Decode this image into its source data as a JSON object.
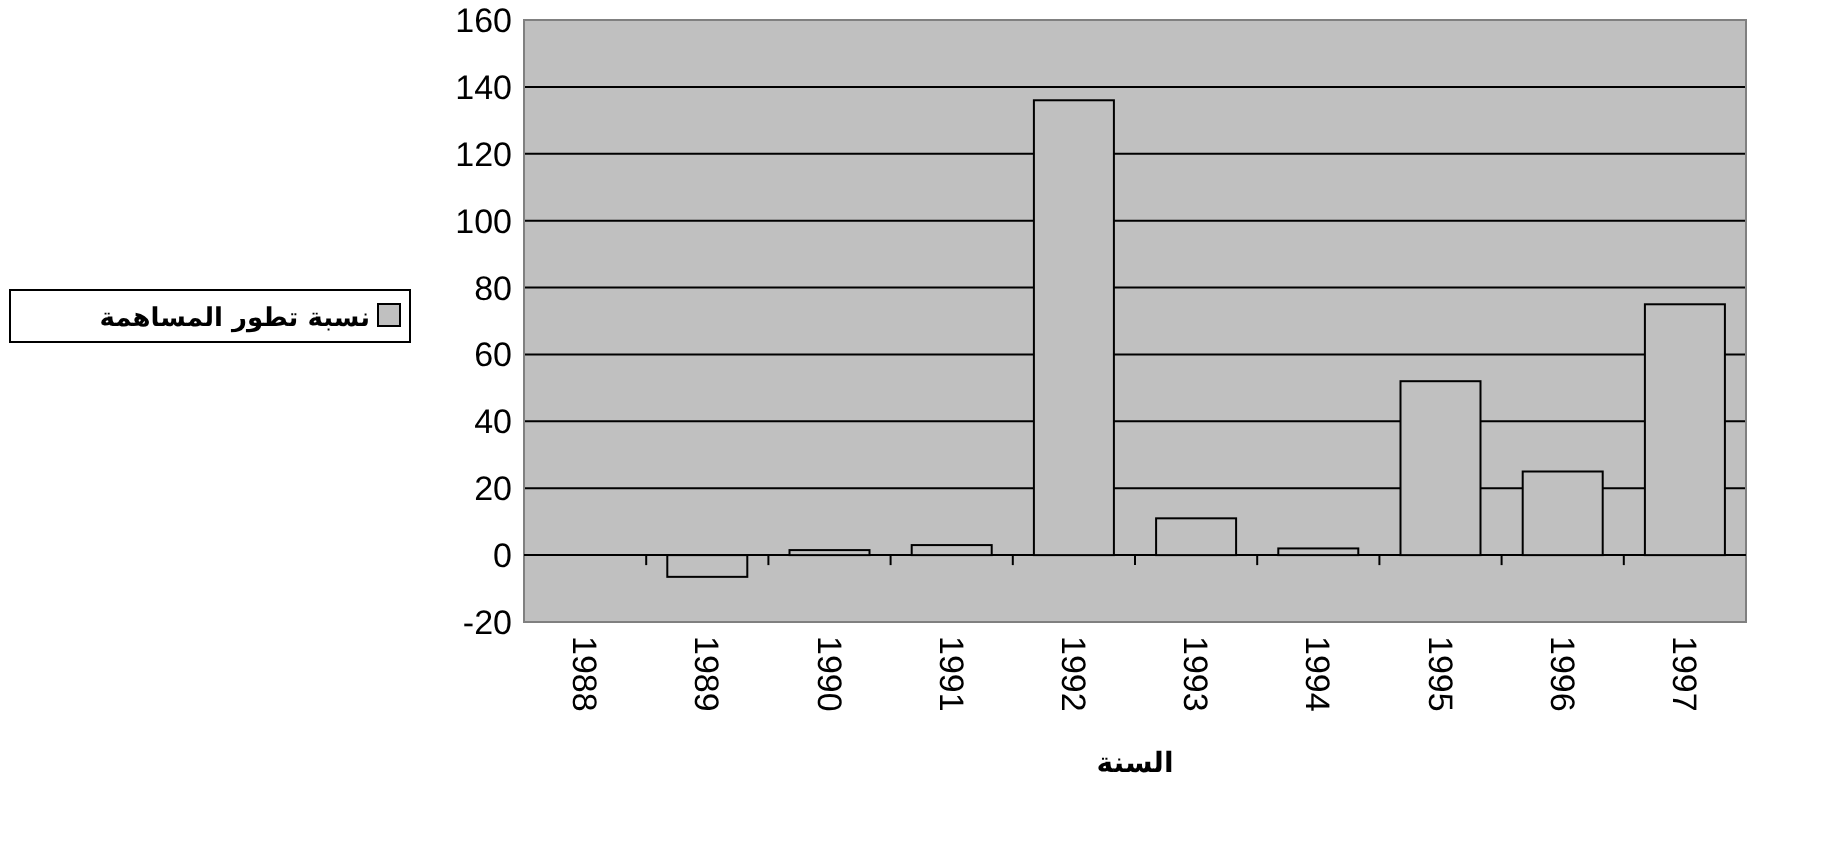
{
  "chart_data": {
    "type": "bar",
    "xlabel": "السنة",
    "categories": [
      "1988",
      "1989",
      "1990",
      "1991",
      "1992",
      "1993",
      "1994",
      "1995",
      "1996",
      "1997"
    ],
    "series": [
      {
        "name": "نسبة تطور المساهمة",
        "color": "#c0c0c0",
        "values": [
          null,
          -6.5,
          1.5,
          3,
          136,
          11,
          2,
          52,
          25,
          75
        ]
      }
    ],
    "ylim": [
      -20,
      160
    ],
    "yticks": [
      -20,
      0,
      20,
      40,
      60,
      80,
      100,
      120,
      140,
      160
    ],
    "grid": "y",
    "legend": "left"
  }
}
